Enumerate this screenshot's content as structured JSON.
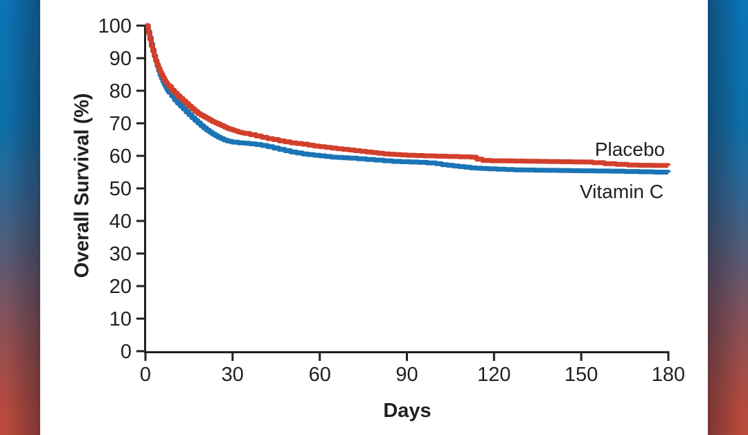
{
  "figure": {
    "kind": "kaplan-meier-survival-figure",
    "background": {
      "band_top_color": "#0a74b6",
      "band_bottom_color": "#bb4a3c",
      "panel_color": "#ffffff"
    }
  },
  "colors": {
    "axis": "#231f20",
    "text": "#231f20",
    "placebo_curve": "#d2402c",
    "vitamin_c_curve": "#1b74b5"
  },
  "chart_data": {
    "type": "line",
    "subtype": "kaplan-meier-step",
    "title": "",
    "xlabel": "Days",
    "ylabel": "Overall Survival (%)",
    "xlim": [
      0,
      180
    ],
    "ylim": [
      0,
      100
    ],
    "x_ticks": [
      0,
      30,
      60,
      90,
      120,
      150,
      180
    ],
    "y_ticks": [
      0,
      10,
      20,
      30,
      40,
      50,
      60,
      70,
      80,
      90,
      100
    ],
    "grid": false,
    "legend_position": "inline-right-of-curves",
    "series": [
      {
        "name": "Vitamin C",
        "color": "#1b74b5",
        "end_value_pct": 55,
        "points": [
          [
            0,
            100
          ],
          [
            0.7,
            100
          ],
          [
            1,
            98.2
          ],
          [
            1.5,
            96.3
          ],
          [
            2,
            94.4
          ],
          [
            2.5,
            92.6
          ],
          [
            3,
            90.8
          ],
          [
            3.5,
            89.2
          ],
          [
            4,
            87.6
          ],
          [
            4.5,
            86.2
          ],
          [
            5,
            84.9
          ],
          [
            5.5,
            83.8
          ],
          [
            6,
            82.8
          ],
          [
            6.5,
            81.9
          ],
          [
            7,
            81
          ],
          [
            7.5,
            80.2
          ],
          [
            8,
            79.5
          ],
          [
            9,
            78.4
          ],
          [
            10,
            77.2
          ],
          [
            11,
            76.2
          ],
          [
            12,
            75.3
          ],
          [
            13,
            74.4
          ],
          [
            14,
            73.5
          ],
          [
            15,
            72.6
          ],
          [
            16,
            71.7
          ],
          [
            17,
            70.9
          ],
          [
            18,
            70.1
          ],
          [
            19,
            69.3
          ],
          [
            20,
            68.6
          ],
          [
            21,
            67.9
          ],
          [
            22,
            67.3
          ],
          [
            23,
            66.7
          ],
          [
            24,
            66.2
          ],
          [
            25,
            65.7
          ],
          [
            26,
            65.3
          ],
          [
            27,
            64.9
          ],
          [
            28,
            64.6
          ],
          [
            29,
            64.4
          ],
          [
            30,
            64.2
          ],
          [
            32,
            64
          ],
          [
            34,
            63.9
          ],
          [
            36,
            63.7
          ],
          [
            38,
            63.5
          ],
          [
            40,
            63.2
          ],
          [
            42,
            62.8
          ],
          [
            44,
            62.4
          ],
          [
            46,
            62
          ],
          [
            48,
            61.6
          ],
          [
            50,
            61.2
          ],
          [
            52,
            60.9
          ],
          [
            54,
            60.6
          ],
          [
            56,
            60.4
          ],
          [
            58,
            60.2
          ],
          [
            60,
            60
          ],
          [
            62,
            59.8
          ],
          [
            64,
            59.6
          ],
          [
            66,
            59.5
          ],
          [
            68,
            59.4
          ],
          [
            70,
            59.3
          ],
          [
            73,
            59.1
          ],
          [
            76,
            58.9
          ],
          [
            79,
            58.7
          ],
          [
            82,
            58.5
          ],
          [
            85,
            58.3
          ],
          [
            88,
            58.2
          ],
          [
            91,
            58.1
          ],
          [
            94,
            58
          ],
          [
            97,
            57.8
          ],
          [
            100,
            57.6
          ],
          [
            102,
            57.3
          ],
          [
            104,
            57.1
          ],
          [
            106,
            56.9
          ],
          [
            108,
            56.7
          ],
          [
            110,
            56.5
          ],
          [
            112,
            56.3
          ],
          [
            114,
            56.2
          ],
          [
            116,
            56.1
          ],
          [
            118,
            56
          ],
          [
            121,
            55.9
          ],
          [
            124,
            55.8
          ],
          [
            127,
            55.7
          ],
          [
            130,
            55.65
          ],
          [
            134,
            55.6
          ],
          [
            138,
            55.55
          ],
          [
            142,
            55.5
          ],
          [
            146,
            55.45
          ],
          [
            150,
            55.4
          ],
          [
            155,
            55.35
          ],
          [
            160,
            55.3
          ],
          [
            165,
            55.2
          ],
          [
            170,
            55.1
          ],
          [
            175,
            55
          ],
          [
            180,
            54.9
          ]
        ]
      },
      {
        "name": "Placebo",
        "color": "#d2402c",
        "end_value_pct": 57,
        "points": [
          [
            0,
            100
          ],
          [
            0.7,
            100
          ],
          [
            1,
            97.8
          ],
          [
            1.5,
            95.8
          ],
          [
            2,
            93.8
          ],
          [
            2.5,
            92.2
          ],
          [
            3,
            90.6
          ],
          [
            3.5,
            89.2
          ],
          [
            4,
            88
          ],
          [
            4.5,
            86.9
          ],
          [
            5,
            85.9
          ],
          [
            5.5,
            85
          ],
          [
            6,
            84.1
          ],
          [
            6.5,
            83.3
          ],
          [
            7,
            82.6
          ],
          [
            7.5,
            81.9
          ],
          [
            8,
            81.3
          ],
          [
            9,
            80.2
          ],
          [
            10,
            79.3
          ],
          [
            11,
            78.4
          ],
          [
            12,
            77.6
          ],
          [
            13,
            76.8
          ],
          [
            14,
            76
          ],
          [
            15,
            75.2
          ],
          [
            16,
            74.4
          ],
          [
            17,
            73.7
          ],
          [
            18,
            73
          ],
          [
            19,
            72.5
          ],
          [
            20,
            72
          ],
          [
            21,
            71.5
          ],
          [
            22,
            71
          ],
          [
            23,
            70.5
          ],
          [
            24,
            70.1
          ],
          [
            25,
            69.7
          ],
          [
            26,
            69.3
          ],
          [
            27,
            68.9
          ],
          [
            28,
            68.5
          ],
          [
            29,
            68.2
          ],
          [
            30,
            67.9
          ],
          [
            31,
            67.6
          ],
          [
            32,
            67.3
          ],
          [
            33,
            67.1
          ],
          [
            34,
            66.9
          ],
          [
            36,
            66.5
          ],
          [
            38,
            66.1
          ],
          [
            40,
            65.7
          ],
          [
            42,
            65.3
          ],
          [
            44,
            65
          ],
          [
            46,
            64.6
          ],
          [
            48,
            64.3
          ],
          [
            50,
            64
          ],
          [
            52,
            63.8
          ],
          [
            54,
            63.6
          ],
          [
            56,
            63.3
          ],
          [
            58,
            63
          ],
          [
            60,
            62.8
          ],
          [
            62,
            62.6
          ],
          [
            64,
            62.4
          ],
          [
            66,
            62.2
          ],
          [
            68,
            62
          ],
          [
            70,
            61.8
          ],
          [
            72,
            61.6
          ],
          [
            74,
            61.4
          ],
          [
            76,
            61.2
          ],
          [
            78,
            61
          ],
          [
            80,
            60.8
          ],
          [
            82,
            60.6
          ],
          [
            84,
            60.5
          ],
          [
            86,
            60.4
          ],
          [
            88,
            60.3
          ],
          [
            90,
            60.2
          ],
          [
            93,
            60.1
          ],
          [
            96,
            60
          ],
          [
            100,
            59.9
          ],
          [
            104,
            59.8
          ],
          [
            108,
            59.7
          ],
          [
            112,
            59.6
          ],
          [
            114,
            59
          ],
          [
            116,
            58.6
          ],
          [
            119,
            58.5
          ],
          [
            123,
            58.45
          ],
          [
            127,
            58.4
          ],
          [
            131,
            58.35
          ],
          [
            135,
            58.3
          ],
          [
            139,
            58.25
          ],
          [
            143,
            58.2
          ],
          [
            147,
            58.15
          ],
          [
            151,
            58.1
          ],
          [
            154,
            57.9
          ],
          [
            158,
            57.6
          ],
          [
            162,
            57.4
          ],
          [
            166,
            57.2
          ],
          [
            170,
            57.1
          ],
          [
            175,
            57.05
          ],
          [
            180,
            57
          ]
        ]
      }
    ]
  },
  "curve_labels": {
    "placebo": "Placebo",
    "vitamin_c": "Vitamin C"
  }
}
